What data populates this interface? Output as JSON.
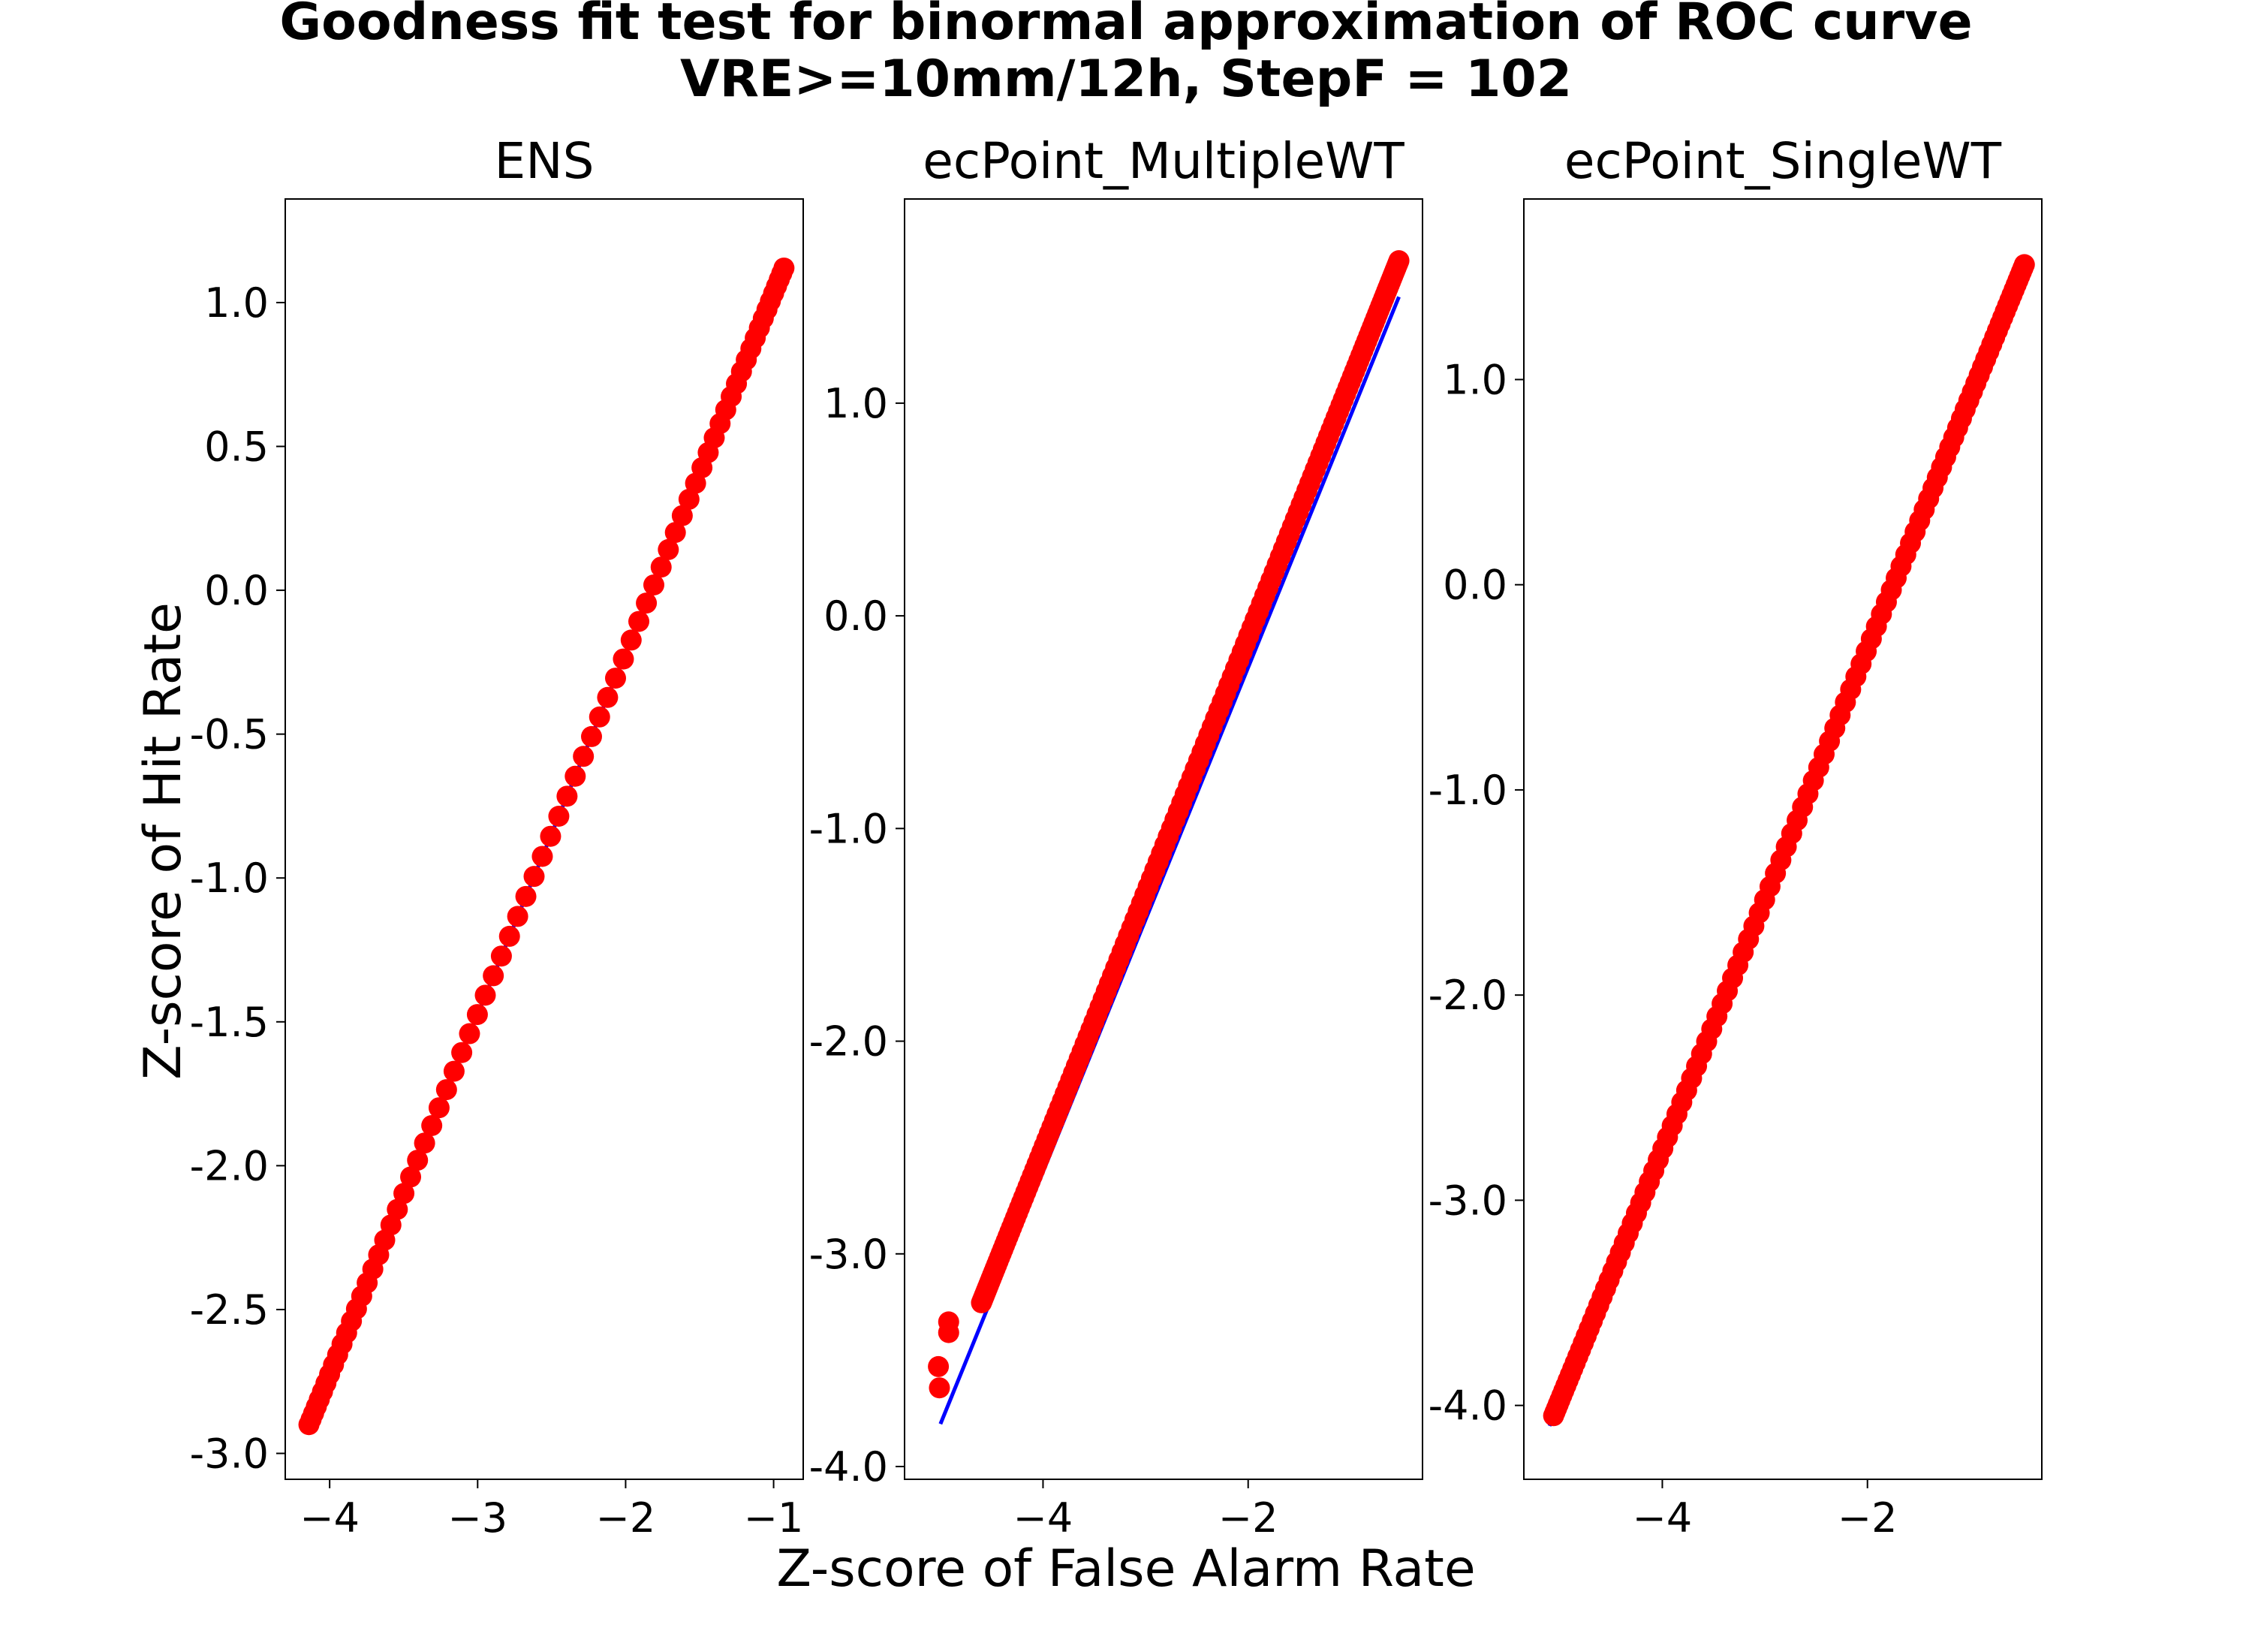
{
  "figure": {
    "title_line1": "Goodness fit test for binormal approximation of ROC curve",
    "title_line2": "VRE>=10mm/12h, StepF = 102",
    "xlabel": "Z-score of False Alarm Rate",
    "ylabel": "Z-score of Hit Rate",
    "line_color": "#0000ff",
    "point_color": "#ff0000"
  },
  "chart_data": [
    {
      "type": "scatter",
      "title": "ENS",
      "xlim": [
        -4.3,
        -0.8
      ],
      "ylim": [
        -3.09,
        1.36
      ],
      "xticks": [
        -4,
        -3,
        -2,
        -1
      ],
      "xtick_labels": [
        "−4",
        "−3",
        "−2",
        "−1"
      ],
      "yticks": [
        -3.0,
        -2.5,
        -2.0,
        -1.5,
        -1.0,
        -0.5,
        0.0,
        0.5,
        1.0
      ],
      "ytick_labels": [
        "-3.0",
        "-2.5",
        "-2.0",
        "-1.5",
        "-1.0",
        "-0.5",
        "0.0",
        "0.5",
        "1.0"
      ],
      "fit_line": {
        "x": [
          -4.15,
          -0.92
        ],
        "y": [
          -2.92,
          1.14
        ]
      },
      "points_x_range": [
        -4.14,
        -0.93
      ],
      "points_y_range": [
        -2.9,
        1.12
      ],
      "n_points": 80
    },
    {
      "type": "scatter",
      "title": "ecPoint_MultipleWT",
      "xlim": [
        -5.35,
        -0.3
      ],
      "ylim": [
        -4.06,
        1.96
      ],
      "xticks": [
        -4,
        -2
      ],
      "xtick_labels": [
        "−4",
        "−2"
      ],
      "yticks": [
        -4.0,
        -3.0,
        -2.0,
        -1.0,
        0.0,
        1.0
      ],
      "ytick_labels": [
        "-4.0",
        "-3.0",
        "-2.0",
        "-1.0",
        "0.0",
        "1.0"
      ],
      "fit_line": {
        "x": [
          -5.0,
          -0.53
        ],
        "y": [
          -3.8,
          1.5
        ]
      },
      "points_x_range": [
        -4.6,
        -0.53
      ],
      "points_y_range": [
        -3.23,
        1.67
      ],
      "n_points": 170,
      "outliers": [
        {
          "x": -5.02,
          "y": -3.53
        },
        {
          "x": -5.01,
          "y": -3.63
        },
        {
          "x": -4.92,
          "y": -3.32
        },
        {
          "x": -4.92,
          "y": -3.37
        }
      ]
    },
    {
      "type": "scatter",
      "title": "ecPoint_SingleWT",
      "xlim": [
        -5.35,
        -0.3
      ],
      "ylim": [
        -4.36,
        1.88
      ],
      "xticks": [
        -4,
        -2
      ],
      "xtick_labels": [
        "−4",
        "−2"
      ],
      "yticks": [
        -4.0,
        -3.0,
        -2.0,
        -1.0,
        0.0,
        1.0
      ],
      "ytick_labels": [
        "-4.0",
        "-3.0",
        "-2.0",
        "-1.0",
        "0.0",
        "1.0"
      ],
      "fit_line": {
        "x": [
          -5.1,
          -0.43
        ],
        "y": [
          -4.1,
          1.6
        ]
      },
      "points_x_range": [
        -5.06,
        -0.47
      ],
      "points_y_range": [
        -4.05,
        1.56
      ],
      "n_points": 120
    }
  ]
}
